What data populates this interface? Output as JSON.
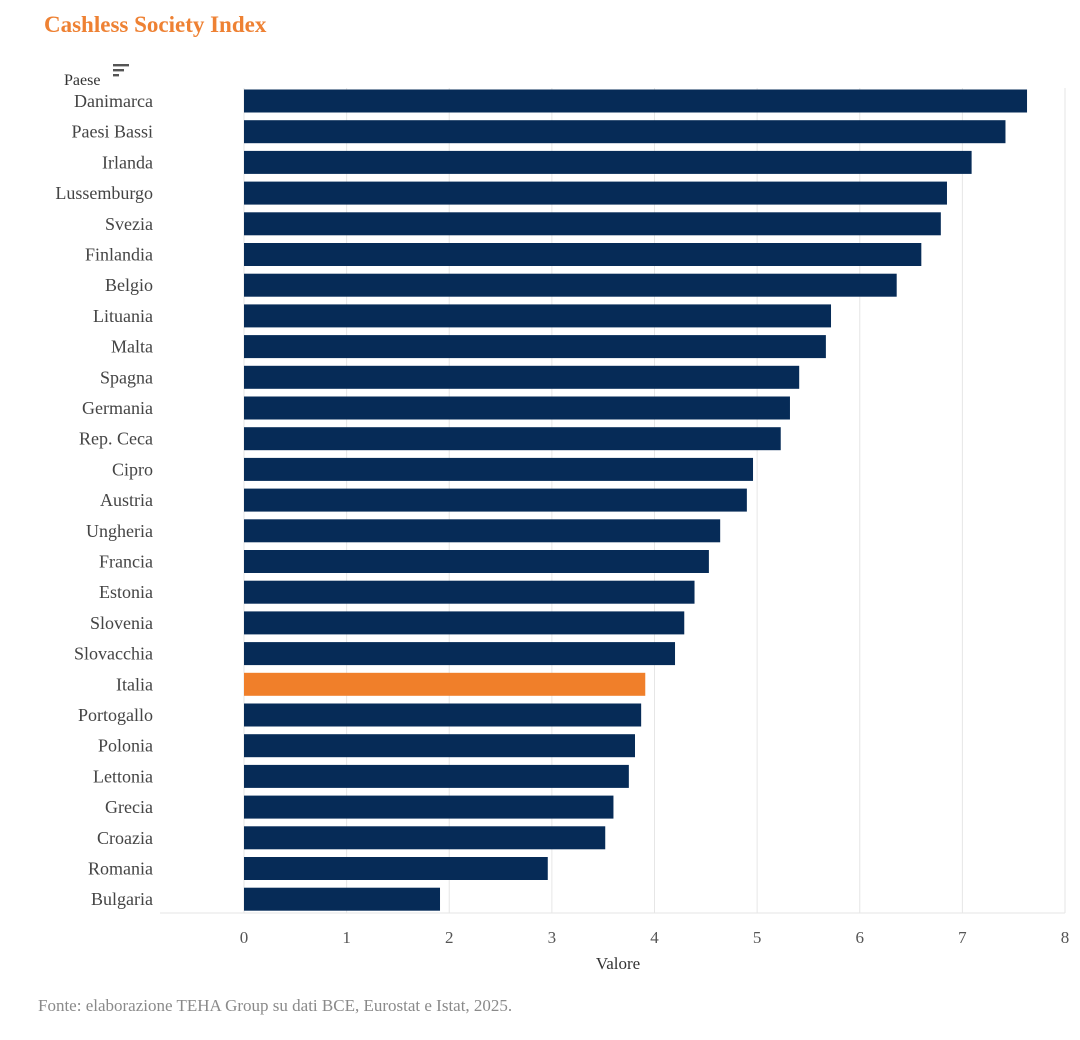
{
  "title": "Cashless Society Index",
  "source_note": "Fonte: elaborazione TEHA Group su dati BCE, Eurostat e Istat, 2025.",
  "sort_icon": "sort-descending-icon",
  "colors": {
    "title": "#EE8133",
    "bar": "#062B57",
    "highlight": "#F07F2A",
    "grid": "#E6E6E6"
  },
  "chart_data": {
    "type": "bar",
    "orientation": "horizontal",
    "title": "Cashless Society Index",
    "ylabel": "Paese",
    "xlabel": "Valore",
    "xlim": [
      0,
      8
    ],
    "xticks": [
      0,
      1,
      2,
      3,
      4,
      5,
      6,
      7,
      8
    ],
    "grid": true,
    "highlight": "Italia",
    "categories": [
      "Danimarca",
      "Paesi Bassi",
      "Irlanda",
      "Lussemburgo",
      "Svezia",
      "Finlandia",
      "Belgio",
      "Lituania",
      "Malta",
      "Spagna",
      "Germania",
      "Rep. Ceca",
      "Cipro",
      "Austria",
      "Ungheria",
      "Francia",
      "Estonia",
      "Slovenia",
      "Slovacchia",
      "Italia",
      "Portogallo",
      "Polonia",
      "Lettonia",
      "Grecia",
      "Croazia",
      "Romania",
      "Bulgaria"
    ],
    "values": [
      7.63,
      7.42,
      7.09,
      6.85,
      6.79,
      6.6,
      6.36,
      5.72,
      5.67,
      5.41,
      5.32,
      5.23,
      4.96,
      4.9,
      4.64,
      4.53,
      4.39,
      4.29,
      4.2,
      3.91,
      3.87,
      3.81,
      3.75,
      3.6,
      3.52,
      2.96,
      1.91
    ]
  }
}
